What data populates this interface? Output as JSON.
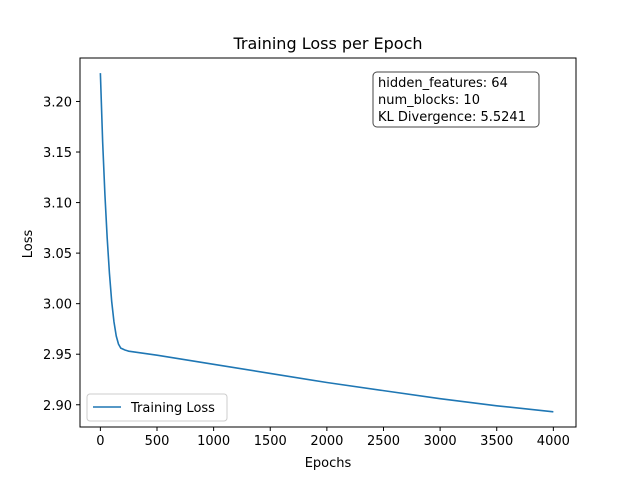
{
  "chart_data": {
    "type": "line",
    "title": "Training Loss per Epoch",
    "xlabel": "Epochs",
    "ylabel": "Loss",
    "xlim": [
      -180,
      4200
    ],
    "ylim": [
      2.878,
      3.243
    ],
    "xticks": [
      0,
      500,
      1000,
      1500,
      2000,
      2500,
      3000,
      3500,
      4000
    ],
    "yticks": [
      2.9,
      2.95,
      3.0,
      3.05,
      3.1,
      3.15,
      3.2
    ],
    "ytick_labels": [
      "2.90",
      "2.95",
      "3.00",
      "3.05",
      "3.10",
      "3.15",
      "3.20"
    ],
    "grid": false,
    "legend_position": "lower-left",
    "series": [
      {
        "name": "Training Loss",
        "color": "#1f77b4",
        "x": [
          0,
          20,
          40,
          60,
          80,
          100,
          120,
          140,
          160,
          180,
          200,
          220,
          250,
          500,
          1000,
          1500,
          2000,
          2500,
          3000,
          3500,
          4000
        ],
        "values": [
          3.228,
          3.16,
          3.108,
          3.065,
          3.03,
          3.002,
          2.982,
          2.968,
          2.96,
          2.956,
          2.955,
          2.954,
          2.953,
          2.949,
          2.94,
          2.931,
          2.922,
          2.914,
          2.906,
          2.899,
          2.893
        ]
      }
    ],
    "annotation": {
      "lines": [
        "hidden_features: 64",
        "num_blocks: 10",
        "KL Divergence: 5.5241"
      ],
      "position": "top-right"
    }
  }
}
